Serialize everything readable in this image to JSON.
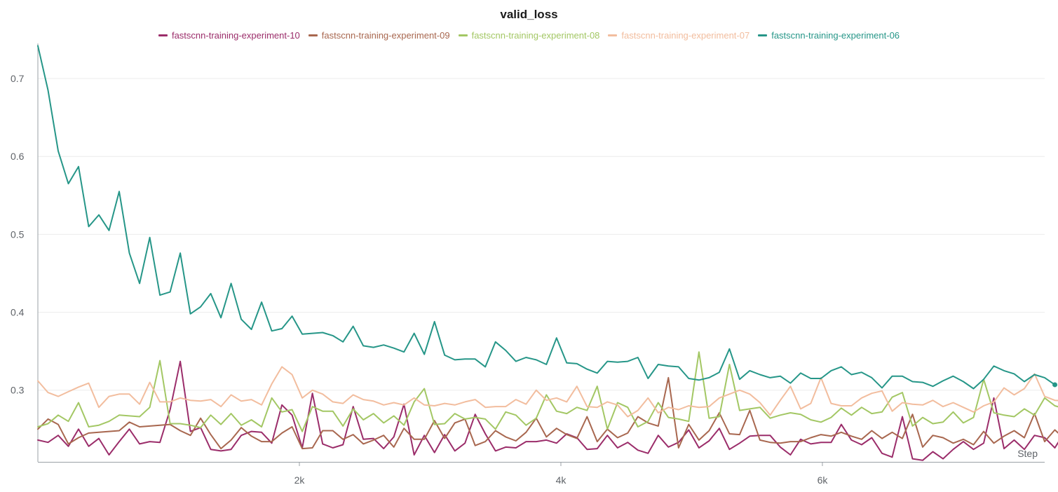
{
  "chart_data": {
    "type": "line",
    "title": "valid_loss",
    "xlabel": "Step",
    "ylabel": "",
    "xlim": [
      0,
      7700
    ],
    "ylim": [
      0.208,
      0.745
    ],
    "x_ticks": [
      2000,
      4000,
      6000
    ],
    "x_tick_labels": [
      "2k",
      "4k",
      "6k"
    ],
    "y_ticks": [
      0.3,
      0.4,
      0.5,
      0.6,
      0.7
    ],
    "y_tick_labels": [
      "0.3",
      "0.4",
      "0.5",
      "0.6",
      "0.7"
    ],
    "grid": true,
    "legend_position": "top-center",
    "x_step": 77.78,
    "series": [
      {
        "name": "fastscnn-training-experiment-10",
        "color": "#9b2d6a",
        "values": [
          0.236,
          0.233,
          0.242,
          0.228,
          0.25,
          0.228,
          0.238,
          0.217,
          0.234,
          0.25,
          0.231,
          0.234,
          0.233,
          0.275,
          0.337,
          0.247,
          0.252,
          0.224,
          0.222,
          0.224,
          0.242,
          0.247,
          0.246,
          0.232,
          0.281,
          0.268,
          0.226,
          0.296,
          0.231,
          0.226,
          0.23,
          0.279,
          0.237,
          0.238,
          0.225,
          0.24,
          0.282,
          0.217,
          0.242,
          0.22,
          0.243,
          0.222,
          0.232,
          0.269,
          0.244,
          0.222,
          0.227,
          0.226,
          0.234,
          0.234,
          0.236,
          0.232,
          0.244,
          0.239,
          0.224,
          0.225,
          0.242,
          0.226,
          0.233,
          0.223,
          0.219,
          0.242,
          0.227,
          0.233,
          0.249,
          0.226,
          0.235,
          0.251,
          0.224,
          0.232,
          0.241,
          0.242,
          0.242,
          0.227,
          0.217,
          0.237,
          0.231,
          0.233,
          0.233,
          0.256,
          0.236,
          0.23,
          0.239,
          0.219,
          0.214,
          0.266,
          0.212,
          0.21,
          0.221,
          0.212,
          0.224,
          0.234,
          0.224,
          0.232,
          0.29,
          0.225,
          0.236,
          0.224,
          0.242,
          0.239,
          0.226,
          0.247
        ]
      },
      {
        "name": "fastscnn-training-experiment-09",
        "color": "#a8674f",
        "values": [
          0.25,
          0.263,
          0.256,
          0.231,
          0.239,
          0.245,
          0.246,
          0.247,
          0.248,
          0.259,
          0.253,
          0.254,
          0.255,
          0.256,
          0.248,
          0.242,
          0.264,
          0.243,
          0.225,
          0.236,
          0.252,
          0.241,
          0.234,
          0.234,
          0.245,
          0.253,
          0.225,
          0.226,
          0.248,
          0.248,
          0.237,
          0.243,
          0.231,
          0.236,
          0.242,
          0.227,
          0.251,
          0.237,
          0.237,
          0.261,
          0.238,
          0.258,
          0.263,
          0.229,
          0.234,
          0.248,
          0.24,
          0.235,
          0.246,
          0.264,
          0.24,
          0.251,
          0.243,
          0.238,
          0.266,
          0.234,
          0.25,
          0.239,
          0.245,
          0.266,
          0.258,
          0.254,
          0.316,
          0.226,
          0.256,
          0.236,
          0.248,
          0.271,
          0.244,
          0.243,
          0.274,
          0.236,
          0.233,
          0.232,
          0.234,
          0.234,
          0.239,
          0.243,
          0.241,
          0.246,
          0.241,
          0.237,
          0.248,
          0.238,
          0.246,
          0.238,
          0.269,
          0.227,
          0.242,
          0.239,
          0.232,
          0.237,
          0.23,
          0.247,
          0.232,
          0.241,
          0.248,
          0.239,
          0.27,
          0.234,
          0.249,
          0.237
        ]
      },
      {
        "name": "fastscnn-training-experiment-08",
        "color": "#a3c764",
        "values": [
          0.253,
          0.257,
          0.268,
          0.26,
          0.284,
          0.253,
          0.255,
          0.26,
          0.268,
          0.267,
          0.266,
          0.278,
          0.338,
          0.257,
          0.257,
          0.255,
          0.252,
          0.268,
          0.256,
          0.27,
          0.255,
          0.262,
          0.253,
          0.29,
          0.272,
          0.275,
          0.247,
          0.279,
          0.273,
          0.273,
          0.254,
          0.276,
          0.262,
          0.27,
          0.258,
          0.267,
          0.255,
          0.285,
          0.302,
          0.256,
          0.257,
          0.27,
          0.263,
          0.265,
          0.263,
          0.25,
          0.272,
          0.268,
          0.255,
          0.264,
          0.294,
          0.273,
          0.27,
          0.278,
          0.274,
          0.305,
          0.25,
          0.284,
          0.278,
          0.253,
          0.26,
          0.284,
          0.265,
          0.263,
          0.26,
          0.349,
          0.264,
          0.266,
          0.333,
          0.274,
          0.276,
          0.278,
          0.264,
          0.268,
          0.271,
          0.269,
          0.262,
          0.259,
          0.265,
          0.277,
          0.268,
          0.278,
          0.27,
          0.272,
          0.291,
          0.297,
          0.254,
          0.265,
          0.257,
          0.259,
          0.272,
          0.258,
          0.265,
          0.314,
          0.271,
          0.268,
          0.266,
          0.276,
          0.268,
          0.29,
          0.28,
          0.276
        ]
      },
      {
        "name": "fastscnn-training-experiment-07",
        "color": "#f2bd9e",
        "values": [
          0.312,
          0.297,
          0.292,
          0.298,
          0.304,
          0.309,
          0.278,
          0.292,
          0.295,
          0.295,
          0.282,
          0.31,
          0.285,
          0.285,
          0.29,
          0.287,
          0.286,
          0.288,
          0.279,
          0.294,
          0.286,
          0.288,
          0.281,
          0.308,
          0.33,
          0.32,
          0.29,
          0.3,
          0.295,
          0.285,
          0.283,
          0.294,
          0.288,
          0.286,
          0.281,
          0.284,
          0.281,
          0.29,
          0.281,
          0.28,
          0.283,
          0.281,
          0.285,
          0.288,
          0.278,
          0.279,
          0.279,
          0.288,
          0.282,
          0.3,
          0.287,
          0.29,
          0.285,
          0.305,
          0.279,
          0.278,
          0.285,
          0.281,
          0.266,
          0.274,
          0.29,
          0.271,
          0.278,
          0.275,
          0.28,
          0.278,
          0.279,
          0.29,
          0.295,
          0.3,
          0.295,
          0.284,
          0.268,
          0.287,
          0.305,
          0.276,
          0.283,
          0.316,
          0.283,
          0.28,
          0.28,
          0.29,
          0.296,
          0.299,
          0.273,
          0.284,
          0.282,
          0.281,
          0.287,
          0.279,
          0.284,
          0.278,
          0.272,
          0.28,
          0.285,
          0.303,
          0.294,
          0.302,
          0.321,
          0.292,
          0.287,
          0.286
        ]
      },
      {
        "name": "fastscnn-training-experiment-06",
        "color": "#269688",
        "values": [
          0.742,
          0.685,
          0.607,
          0.565,
          0.587,
          0.51,
          0.525,
          0.505,
          0.555,
          0.476,
          0.437,
          0.496,
          0.422,
          0.426,
          0.476,
          0.398,
          0.407,
          0.424,
          0.393,
          0.437,
          0.391,
          0.378,
          0.413,
          0.376,
          0.379,
          0.395,
          0.372,
          0.373,
          0.374,
          0.37,
          0.362,
          0.382,
          0.357,
          0.355,
          0.358,
          0.354,
          0.349,
          0.373,
          0.346,
          0.388,
          0.345,
          0.339,
          0.34,
          0.34,
          0.33,
          0.362,
          0.351,
          0.337,
          0.342,
          0.339,
          0.333,
          0.367,
          0.335,
          0.334,
          0.327,
          0.322,
          0.337,
          0.336,
          0.337,
          0.342,
          0.315,
          0.333,
          0.331,
          0.33,
          0.315,
          0.313,
          0.316,
          0.323,
          0.353,
          0.314,
          0.325,
          0.32,
          0.316,
          0.318,
          0.309,
          0.322,
          0.315,
          0.315,
          0.325,
          0.33,
          0.32,
          0.323,
          0.316,
          0.303,
          0.318,
          0.318,
          0.311,
          0.31,
          0.305,
          0.312,
          0.318,
          0.311,
          0.302,
          0.314,
          0.331,
          0.325,
          0.321,
          0.311,
          0.32,
          0.316,
          0.307
        ]
      }
    ]
  }
}
